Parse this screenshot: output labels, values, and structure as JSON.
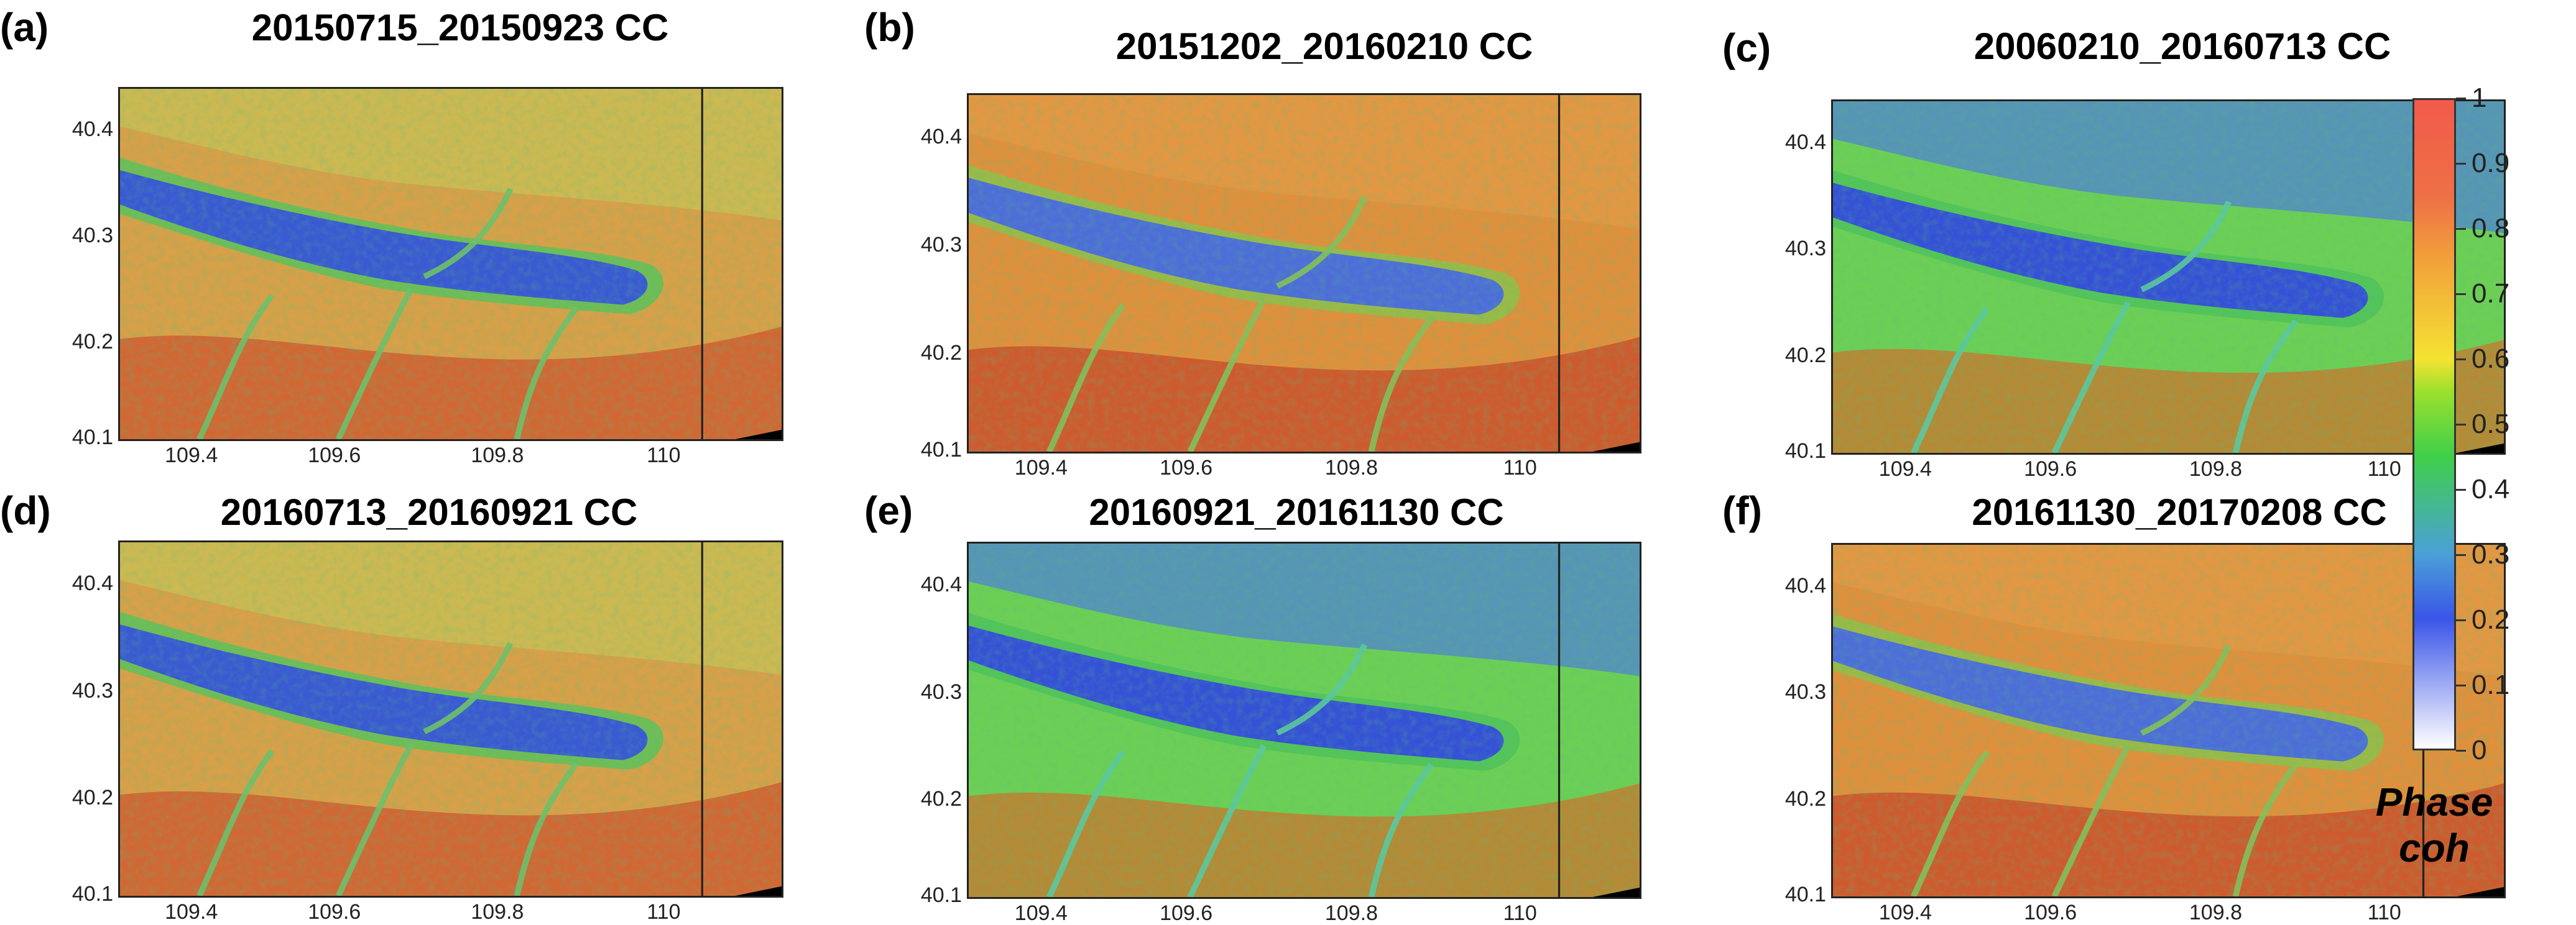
{
  "panels": [
    {
      "letter": "(a)",
      "title": "20150715_20150923 CC",
      "style": "mixed"
    },
    {
      "letter": "(b)",
      "title": "20151202_20160210 CC",
      "style": "red"
    },
    {
      "letter": "(c)",
      "title": "20060210_20160713 CC",
      "style": "green"
    },
    {
      "letter": "(d)",
      "title": "20160713_20160921 CC",
      "style": "mixed"
    },
    {
      "letter": "(e)",
      "title": "20160921_20161130 CC",
      "style": "green"
    },
    {
      "letter": "(f)",
      "title": "20161130_20170208 CC",
      "style": "red"
    }
  ],
  "axes": {
    "y_ticks": [
      "40.4",
      "40.3",
      "40.2",
      "40.1"
    ],
    "x_ticks": [
      "109.4",
      "109.6",
      "109.8",
      "110"
    ]
  },
  "colorbar": {
    "ticks": [
      "1",
      "0.9",
      "0.8",
      "0.7",
      "0.6",
      "0.5",
      "0.4",
      "0.3",
      "0.2",
      "0.1",
      "0"
    ],
    "title_line1": "Phase",
    "title_line2": "coh",
    "colors": {
      "max": "#f25a4a",
      "high": "#ee7046",
      "mid_high": "#f2a33a",
      "mid": "#f4e332",
      "low_mid": "#3fcf4a",
      "low": "#3a55e8",
      "min": "#ffffff"
    }
  }
}
